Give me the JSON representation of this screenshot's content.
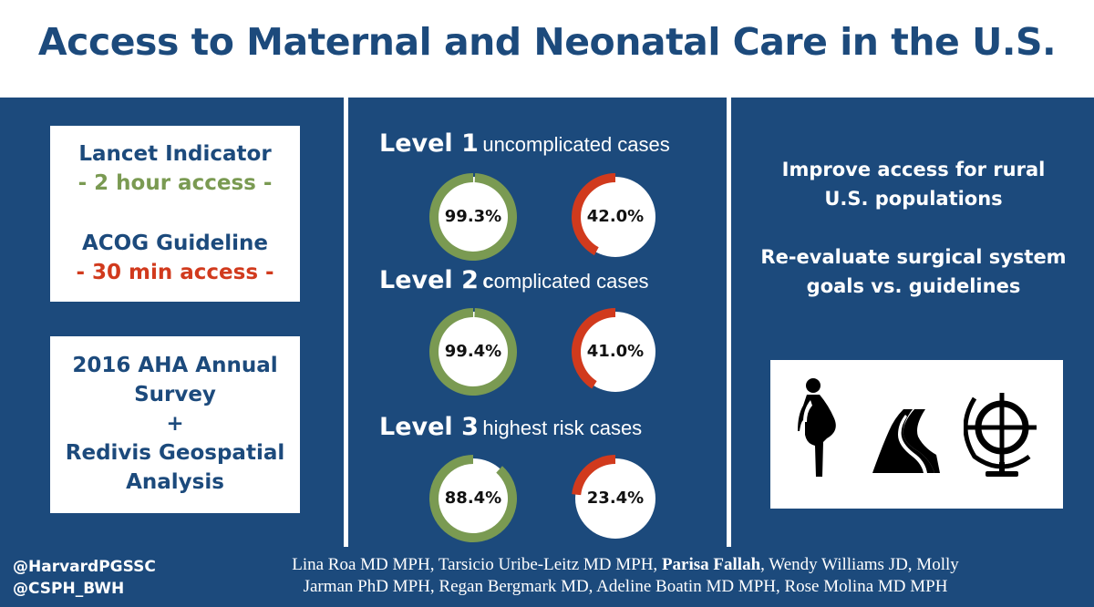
{
  "title": "Access to Maternal and Neonatal Care in the U.S.",
  "left_panel": {
    "card1": {
      "line1": "Lancet Indicator",
      "line2": "- 2 hour access -",
      "line3": "ACOG Guideline",
      "line4": "- 30 min access -"
    },
    "card2": {
      "line1": "2016 AHA Annual",
      "line2": "Survey",
      "line3": "+",
      "line4": "Redivis Geospatial",
      "line5": "Analysis"
    }
  },
  "levels": [
    {
      "level": "Level 1",
      "desc_lead": "",
      "desc": "uncomplicated cases",
      "green_pct": 99.3,
      "green_label": "99.3%",
      "red_pct": 42.0,
      "red_label": "42.0%"
    },
    {
      "level": "Level 2",
      "desc_lead": "c",
      "desc": "omplicated cases",
      "green_pct": 99.4,
      "green_label": "99.4%",
      "red_pct": 41.0,
      "red_label": "41.0%"
    },
    {
      "level": "Level 3",
      "desc_lead": "",
      "desc": "highest risk cases",
      "green_pct": 88.4,
      "green_label": "88.4%",
      "red_pct": 23.4,
      "red_label": "23.4%"
    }
  ],
  "right_panel": {
    "rec1_line1": "Improve access for rural",
    "rec1_line2": "U.S. populations",
    "rec2_line1": "Re-evaluate surgical system",
    "rec2_line2": "goals vs. guidelines",
    "icons": [
      "pregnant-woman-icon",
      "road-icon",
      "globe-icon"
    ]
  },
  "footer": {
    "handle1": "@HarvardPGSSC",
    "handle2": "@CSPH_BWH",
    "authors_a": "Lina Roa MD MPH, Tarsicio Uribe-Leitz MD MPH,",
    "authors_bold": "Parisa Fallah",
    "authors_b": ", Wendy Williams JD, Molly",
    "authors_c": "Jarman PhD MPH, Regan Bergmark MD, Adeline Boatin MD MPH, Rose Molina MD MPH"
  },
  "colors": {
    "navy": "#1c4a7c",
    "green": "#7a9a52",
    "red": "#d13a1d",
    "white": "#ffffff"
  }
}
